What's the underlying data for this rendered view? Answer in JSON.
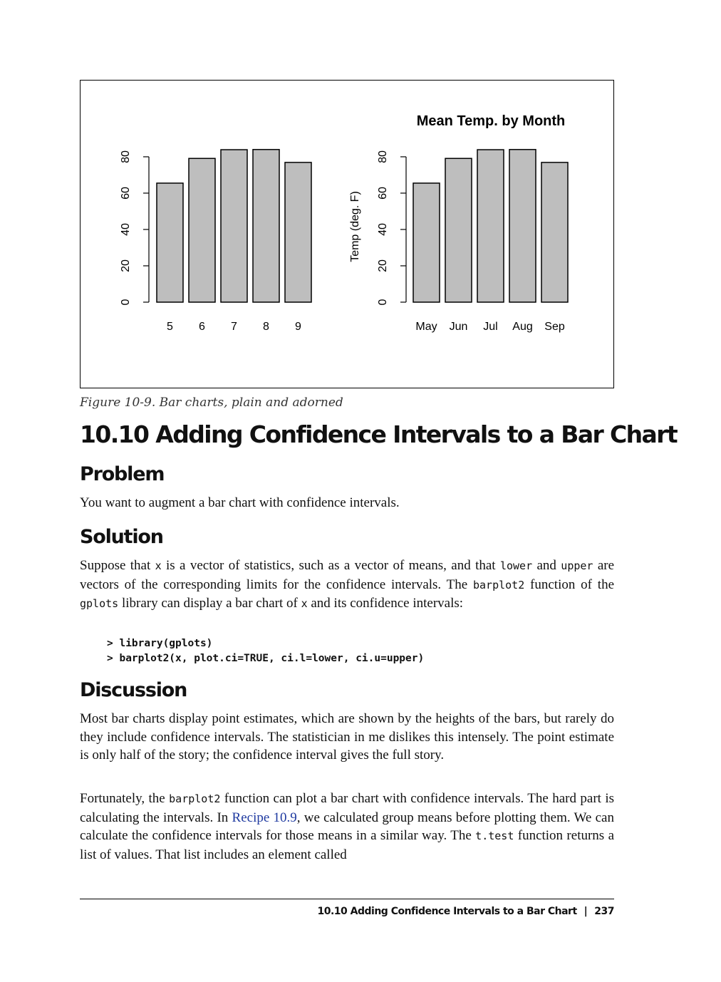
{
  "chart_data": [
    {
      "type": "bar",
      "categories": [
        "5",
        "6",
        "7",
        "8",
        "9"
      ],
      "values": [
        65.5,
        79.1,
        83.9,
        84.0,
        76.9
      ],
      "ylabel": "",
      "ylim": [
        0,
        85
      ],
      "yticks": [
        "0",
        "20",
        "40",
        "60",
        "80"
      ],
      "bar_color": "#bebebe"
    },
    {
      "type": "bar",
      "title": "Mean Temp. by Month",
      "categories": [
        "May",
        "Jun",
        "Jul",
        "Aug",
        "Sep"
      ],
      "values": [
        65.5,
        79.1,
        83.9,
        84.0,
        76.9
      ],
      "ylabel": "Temp (deg. F)",
      "ylim": [
        0,
        85
      ],
      "yticks": [
        "0",
        "20",
        "40",
        "60",
        "80"
      ],
      "bar_color": "#bebebe"
    }
  ],
  "figure": {
    "caption": "Figure 10-9. Bar charts, plain and adorned"
  },
  "section": {
    "title": "10.10  Adding Confidence Intervals to a Bar Chart"
  },
  "problem": {
    "heading": "Problem",
    "text": "You want to augment a bar chart with confidence intervals."
  },
  "solution": {
    "heading": "Solution",
    "p1_a": "Suppose that ",
    "p1_code1": "x",
    "p1_b": " is a vector of statistics, such as a vector of means, and that ",
    "p1_code2": "lower",
    "p1_c": " and ",
    "p1_code3": "upper",
    "p1_d": " are vectors of the corresponding limits for the confidence intervals. The ",
    "p1_code4": "barplot2",
    "p1_e": " function of the ",
    "p1_code5": "gplots",
    "p1_f": " library can display a bar chart of ",
    "p1_code6": "x",
    "p1_g": " and its confidence intervals:",
    "code_line1": "> library(gplots)",
    "code_line2": "> barplot2(x, plot.ci=TRUE, ci.l=lower, ci.u=upper)"
  },
  "discussion": {
    "heading": "Discussion",
    "p1": "Most bar charts display point estimates, which are shown by the heights of the bars, but rarely do they include confidence intervals. The statistician in me dislikes this intensely. The point estimate is only half of the story; the confidence interval gives the full story.",
    "p2_a": "Fortunately, the ",
    "p2_code1": "barplot2",
    "p2_b": " function can plot a bar chart with confidence intervals. The hard part is calculating the intervals. In ",
    "p2_link": "Recipe 10.9",
    "p2_c": ", we calculated group means before plotting them. We can calculate the confidence intervals for those means in a similar way. The ",
    "p2_code2": "t.test",
    "p2_d": " function returns a list of values. That list includes an element called"
  },
  "footer": {
    "section": "10.10  Adding Confidence Intervals to a Bar Chart",
    "separator": "|",
    "page": "237"
  }
}
